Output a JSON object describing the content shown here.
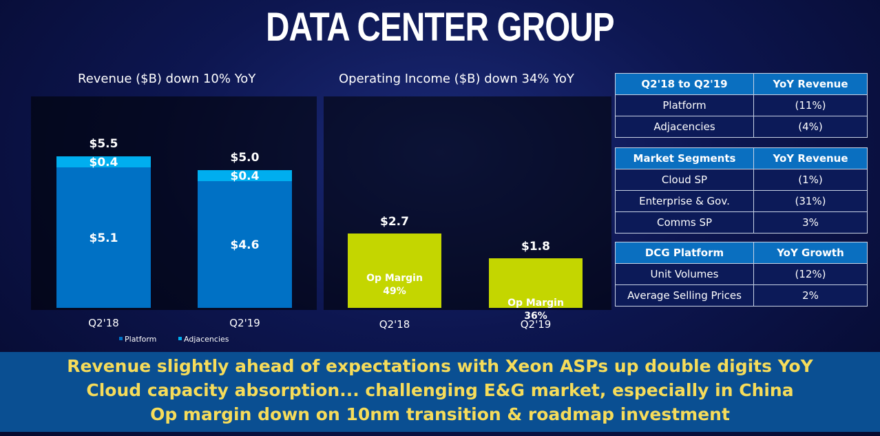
{
  "title": "DATA CENTER GROUP",
  "chart_data": [
    {
      "type": "bar",
      "title": "Revenue ($B) down 10% YoY",
      "categories": [
        "Q2'18",
        "Q2'19"
      ],
      "stacked": true,
      "series": [
        {
          "name": "Platform",
          "values": [
            5.1,
            4.6
          ],
          "color": "#0071c5",
          "labels": [
            "$5.1",
            "$4.6"
          ]
        },
        {
          "name": "Adjacencies",
          "values": [
            0.4,
            0.4
          ],
          "color": "#00aeef",
          "labels": [
            "$0.4",
            "$0.4"
          ]
        }
      ],
      "totals": [
        5.5,
        5.0
      ],
      "total_labels": [
        "$5.5",
        "$5.0"
      ],
      "legend": "bottom",
      "ylim": [
        0,
        6.5
      ]
    },
    {
      "type": "bar",
      "title": "Operating Income ($B) down 34% YoY",
      "categories": [
        "Q2'18",
        "Q2'19"
      ],
      "series": [
        {
          "values": [
            2.7,
            1.8
          ],
          "color": "#c4d600",
          "labels": [
            "$2.7",
            "$1.8"
          ]
        }
      ],
      "bar_annotations": [
        [
          "Op Margin",
          "49%"
        ],
        [
          "Op Margin",
          "36%"
        ]
      ],
      "ylim": [
        0,
        6.5
      ]
    }
  ],
  "tables": [
    {
      "headers": [
        "Q2'18 to Q2'19",
        "YoY Revenue"
      ],
      "rows": [
        [
          "Platform",
          "(11%)"
        ],
        [
          "Adjacencies",
          "(4%)"
        ]
      ]
    },
    {
      "headers": [
        "Market Segments",
        "YoY Revenue"
      ],
      "rows": [
        [
          "Cloud SP",
          "(1%)"
        ],
        [
          "Enterprise & Gov.",
          "(31%)"
        ],
        [
          "Comms SP",
          "3%"
        ]
      ]
    },
    {
      "headers": [
        "DCG Platform",
        "YoY Growth"
      ],
      "rows": [
        [
          "Unit Volumes",
          "(12%)"
        ],
        [
          "Average Selling Prices",
          "2%"
        ]
      ]
    }
  ],
  "banner": [
    "Revenue slightly ahead of expectations with Xeon ASPs up double digits YoY",
    "Cloud capacity absorption... challenging E&G market, especially in China",
    "Op margin down on 10nm transition & roadmap investment"
  ]
}
